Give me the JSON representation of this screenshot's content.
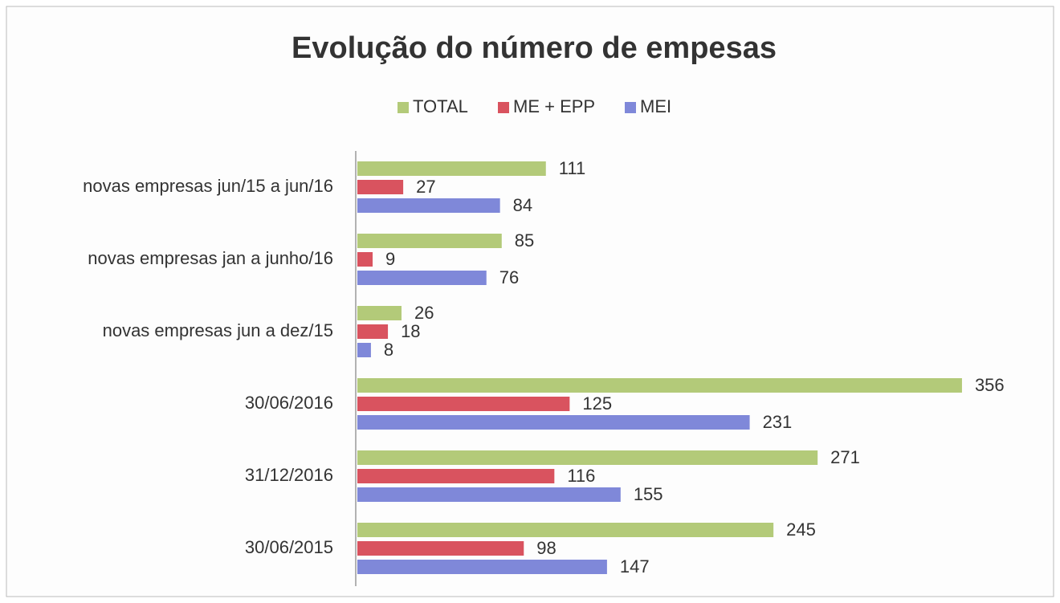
{
  "chart_data": {
    "type": "barh",
    "title": "Evolução do número de empesas",
    "categories": [
      "novas empresas jun/15 a jun/16",
      "novas empresas jan a junho/16",
      "novas empresas jun a dez/15",
      "30/06/2016",
      "31/12/2016",
      "30/06/2015"
    ],
    "series": [
      {
        "name": "TOTAL",
        "color": "#b3ca79",
        "values": [
          111,
          85,
          26,
          356,
          271,
          245
        ]
      },
      {
        "name": "ME + EPP",
        "color": "#d9535f",
        "values": [
          27,
          9,
          18,
          125,
          116,
          98
        ]
      },
      {
        "name": "MEI",
        "color": "#7f88d9",
        "values": [
          84,
          76,
          8,
          231,
          155,
          147
        ]
      }
    ],
    "xlim": [
      0,
      400
    ],
    "legend": "top"
  }
}
